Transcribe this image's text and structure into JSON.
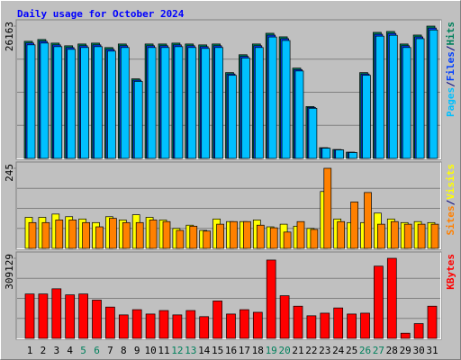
{
  "chart_data": [
    {
      "type": "bar",
      "title": "Daily usage for October 2024",
      "legend_separator": "/",
      "ylim": [
        0,
        26163
      ],
      "yticks": [
        26163
      ],
      "series": [
        {
          "name": "Pages",
          "color": "#00c0ff",
          "values": [
            22460,
            22810,
            22100,
            21570,
            21930,
            22100,
            21220,
            21930,
            15230,
            21930,
            21930,
            22100,
            21930,
            21750,
            21930,
            16430,
            19850,
            21930,
            24010,
            23320,
            17290,
            9910,
            2020,
            1680,
            1160,
            16430,
            24180,
            24350,
            21930,
            23680,
            25400
          ]
        },
        {
          "name": "Files",
          "color": "#0040ff",
          "values": [
            22810,
            23160,
            22450,
            21920,
            22280,
            22450,
            21570,
            22280,
            15480,
            22280,
            22280,
            22450,
            22280,
            22100,
            22280,
            16700,
            20180,
            22280,
            24380,
            23680,
            17570,
            10080,
            2070,
            1720,
            1200,
            16700,
            24550,
            24720,
            22280,
            24030,
            25780
          ]
        },
        {
          "name": "Hits",
          "color": "#00805c",
          "values": [
            23158,
            23511,
            22804,
            22274,
            22627,
            22804,
            21920,
            22627,
            15733,
            22627,
            22627,
            22804,
            22627,
            22450,
            22627,
            16971,
            20506,
            22627,
            24749,
            24042,
            17855,
            10253,
            2121,
            1768,
            1237,
            16971,
            24926,
            25102,
            22627,
            24395,
            26163
          ]
        }
      ]
    },
    {
      "type": "bar",
      "legend_separator": "/",
      "ylim": [
        0,
        245
      ],
      "yticks": [
        245
      ],
      "series": [
        {
          "name": "Sites",
          "color": "#ff8000",
          "values": [
            79,
            79,
            87,
            87,
            79,
            66,
            92,
            79,
            79,
            87,
            82,
            55,
            68,
            53,
            74,
            82,
            82,
            71,
            63,
            50,
            82,
            58,
            245,
            82,
            142,
            171,
            74,
            82,
            74,
            74,
            74
          ]
        },
        {
          "name": "Visits",
          "color": "#ffff00",
          "values": [
            95,
            95,
            105,
            97,
            90,
            79,
            97,
            87,
            103,
            95,
            87,
            61,
            71,
            55,
            90,
            82,
            82,
            87,
            66,
            74,
            68,
            61,
            174,
            90,
            79,
            79,
            108,
            90,
            79,
            82,
            79
          ]
        }
      ]
    },
    {
      "type": "bar",
      "ylim": [
        0,
        309129
      ],
      "yticks": [
        309129
      ],
      "categories": [
        "1",
        "2",
        "3",
        "4",
        "5",
        "6",
        "7",
        "8",
        "9",
        "10",
        "11",
        "12",
        "13",
        "14",
        "15",
        "16",
        "17",
        "18",
        "19",
        "20",
        "21",
        "22",
        "23",
        "24",
        "25",
        "26",
        "27",
        "28",
        "29",
        "30",
        "31"
      ],
      "category_colors": [
        "#000000",
        "#000000",
        "#000000",
        "#000000",
        "#00805c",
        "#00805c",
        "#000000",
        "#000000",
        "#000000",
        "#000000",
        "#000000",
        "#00805c",
        "#00805c",
        "#000000",
        "#000000",
        "#000000",
        "#000000",
        "#000000",
        "#00805c",
        "#00805c",
        "#000000",
        "#000000",
        "#000000",
        "#000000",
        "#000000",
        "#00805c",
        "#00805c",
        "#000000",
        "#000000",
        "#000000",
        "#000000"
      ],
      "series": [
        {
          "name": "KBytes",
          "color": "#ff0000",
          "values": [
            171365,
            171365,
            191524,
            168005,
            171365,
            147844,
            120963,
            90723,
            110883,
            94083,
            107523,
            90723,
            107523,
            84003,
            144484,
            94083,
            110883,
            100803,
            302409,
            164645,
            124323,
            87362,
            97442,
            117603,
            94083,
            97442,
            278888,
            309129,
            20160,
            57122,
            124323
          ]
        }
      ]
    }
  ]
}
